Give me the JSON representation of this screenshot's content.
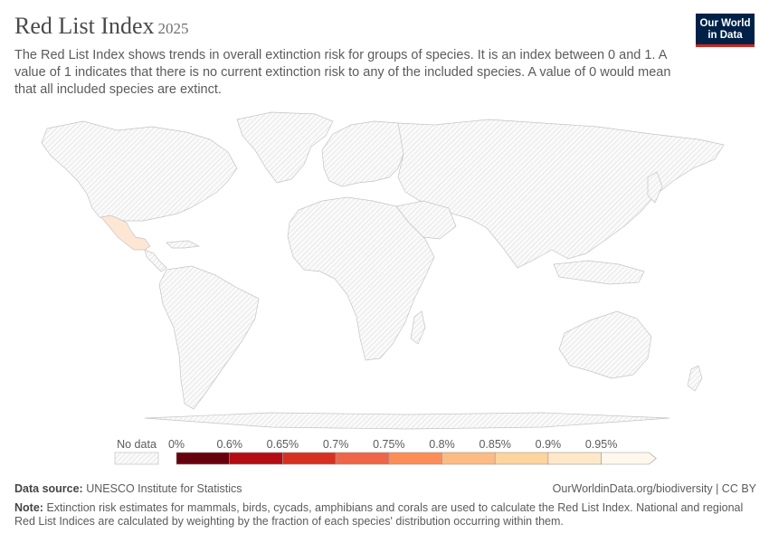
{
  "header": {
    "title": "Red List Index",
    "year": "2025",
    "subtitle": "The Red List Index shows trends in overall extinction risk for groups of species. It is an index between 0 and 1. A value of 1 indicates that there is no current extinction risk to any of the included species. A value of 0 would mean that all included species are extinct."
  },
  "logo": {
    "line1": "Our World",
    "line2": "in Data"
  },
  "map": {
    "highlighted_country": "Mexico",
    "highlight_color": "#fde7d4",
    "no_data_color": "#f0f0f0"
  },
  "legend": {
    "no_data_label": "No data",
    "bins": [
      {
        "label": "0%",
        "color": "#67000d"
      },
      {
        "label": "0.6%",
        "color": "#b30d12"
      },
      {
        "label": "0.65%",
        "color": "#d7301f"
      },
      {
        "label": "0.7%",
        "color": "#ef6548"
      },
      {
        "label": "0.75%",
        "color": "#fc8d59"
      },
      {
        "label": "0.8%",
        "color": "#fdbb84"
      },
      {
        "label": "0.85%",
        "color": "#fdd49e"
      },
      {
        "label": "0.9%",
        "color": "#fee8c8"
      },
      {
        "label": "0.95%",
        "color": "#fff7ec"
      }
    ]
  },
  "footer": {
    "source_label": "Data source:",
    "source": "UNESCO Institute for Statistics",
    "url": "OurWorldinData.org/biodiversity",
    "license": "CC BY",
    "note_label": "Note:",
    "note": "Extinction risk estimates for mammals, birds, cycads, amphibians and corals are used to calculate the Red List Index. National and regional Red List Indices are calculated by weighting by the fraction of each species' distribution occurring within them."
  }
}
